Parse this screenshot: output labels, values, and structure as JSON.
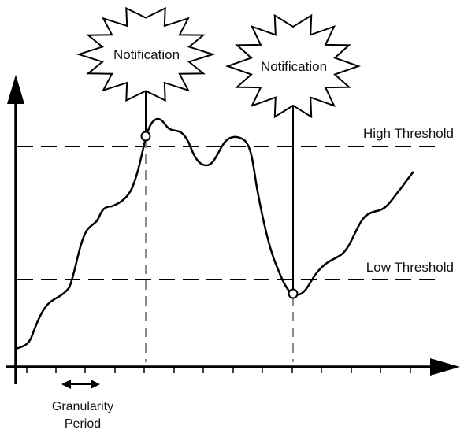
{
  "labels": {
    "notification_1": "Notification",
    "notification_2": "Notification",
    "high_threshold": "High Threshold",
    "low_threshold": "Low Threshold",
    "granularity_line1": "Granularity",
    "granularity_line2": "Period"
  },
  "colors": {
    "stroke": "#000000",
    "guide": "#8c8c8c",
    "background": "#ffffff"
  }
}
